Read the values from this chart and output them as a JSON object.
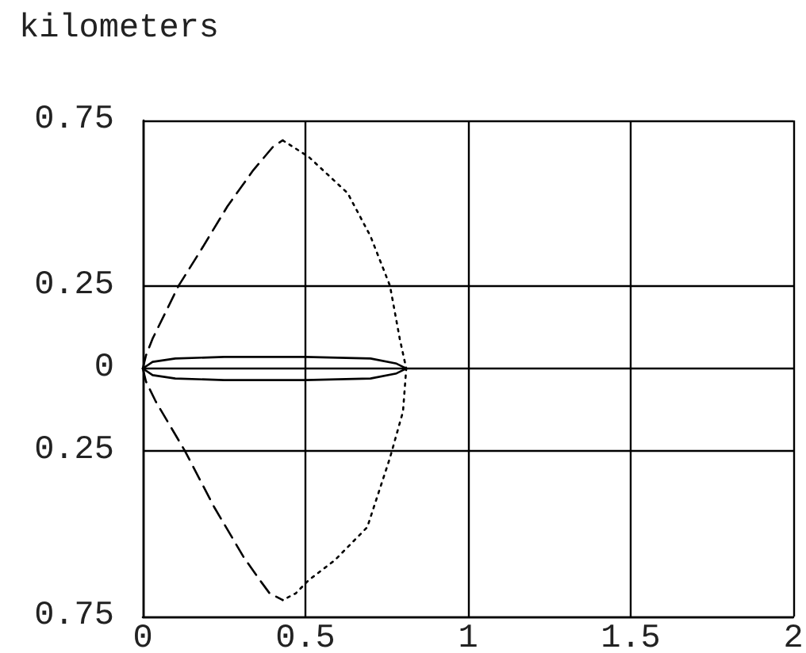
{
  "chart_data": {
    "type": "line",
    "ylabel": "kilometers",
    "xlim": [
      0,
      2
    ],
    "xticks": [
      0,
      0.5,
      1,
      1.5,
      2
    ],
    "ylim": [
      -0.75,
      0.75
    ],
    "yticks": [
      0.75,
      0.25,
      0,
      {
        "value": -0.25,
        "label": "0.25"
      },
      {
        "value": -0.75,
        "label": "0.75"
      }
    ],
    "grid": true,
    "marker": "none",
    "series": [
      {
        "color": "#000000",
        "line_style": "dashed",
        "x": [
          0,
          0.01,
          0.03,
          0.07,
          0.11,
          0.18,
          0.26,
          0.34,
          0.4,
          0.43
        ],
        "values": [
          0,
          0.04,
          0.09,
          0.17,
          0.25,
          0.36,
          0.49,
          0.6,
          0.67,
          0.69
        ]
      },
      {
        "color": "#000000",
        "line_style": "dashed",
        "x": [
          0,
          0.01,
          0.04,
          0.13,
          0.22,
          0.31,
          0.36,
          0.39,
          0.43
        ],
        "values": [
          0,
          -0.04,
          -0.1,
          -0.25,
          -0.42,
          -0.57,
          -0.64,
          -0.68,
          -0.7
        ]
      },
      {
        "color": "#000000",
        "line_style": "dotted",
        "x": [
          0.43,
          0.51,
          0.63,
          0.7,
          0.76,
          0.79,
          0.81,
          0.8,
          0.76,
          0.69,
          0.59,
          0.51,
          0.47,
          0.43
        ],
        "values": [
          0.69,
          0.64,
          0.53,
          0.4,
          0.25,
          0.09,
          0,
          -0.13,
          -0.27,
          -0.48,
          -0.58,
          -0.64,
          -0.68,
          -0.7
        ]
      }
    ]
  }
}
